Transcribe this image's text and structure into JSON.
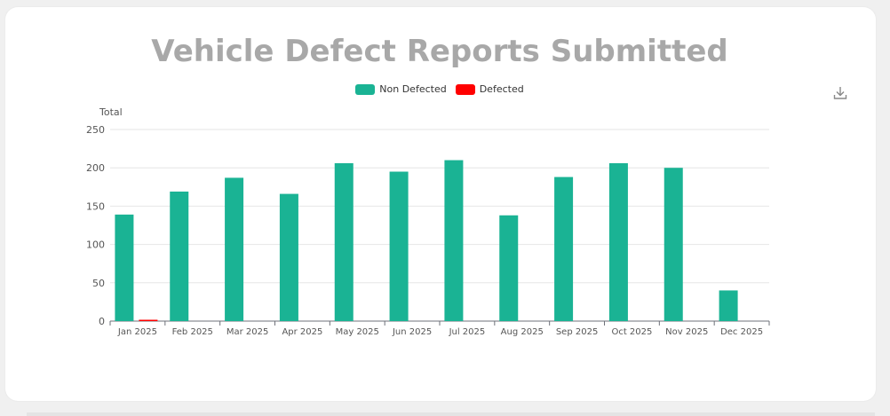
{
  "chart_data": {
    "type": "bar",
    "title": "Vehicle Defect Reports Submitted",
    "ylabel": "Total",
    "ylim": [
      0,
      250
    ],
    "yticks": [
      0,
      50,
      100,
      150,
      200,
      250
    ],
    "grid": true,
    "legend_position": "top-center",
    "categories": [
      "Jan 2025",
      "Feb 2025",
      "Mar 2025",
      "Apr 2025",
      "May 2025",
      "Jun 2025",
      "Jul 2025",
      "Aug 2025",
      "Sep 2025",
      "Oct 2025",
      "Nov 2025",
      "Dec 2025"
    ],
    "series": [
      {
        "name": "Non Defected",
        "color": "#1ab394",
        "values": [
          139,
          169,
          187,
          166,
          206,
          195,
          210,
          138,
          188,
          206,
          200,
          40
        ]
      },
      {
        "name": "Defected",
        "color": "#ff0000",
        "values": [
          1,
          0,
          0,
          0,
          0,
          0,
          0,
          0,
          0,
          0,
          0,
          0
        ]
      }
    ]
  },
  "toolbar": {
    "download_icon": "download-icon"
  }
}
